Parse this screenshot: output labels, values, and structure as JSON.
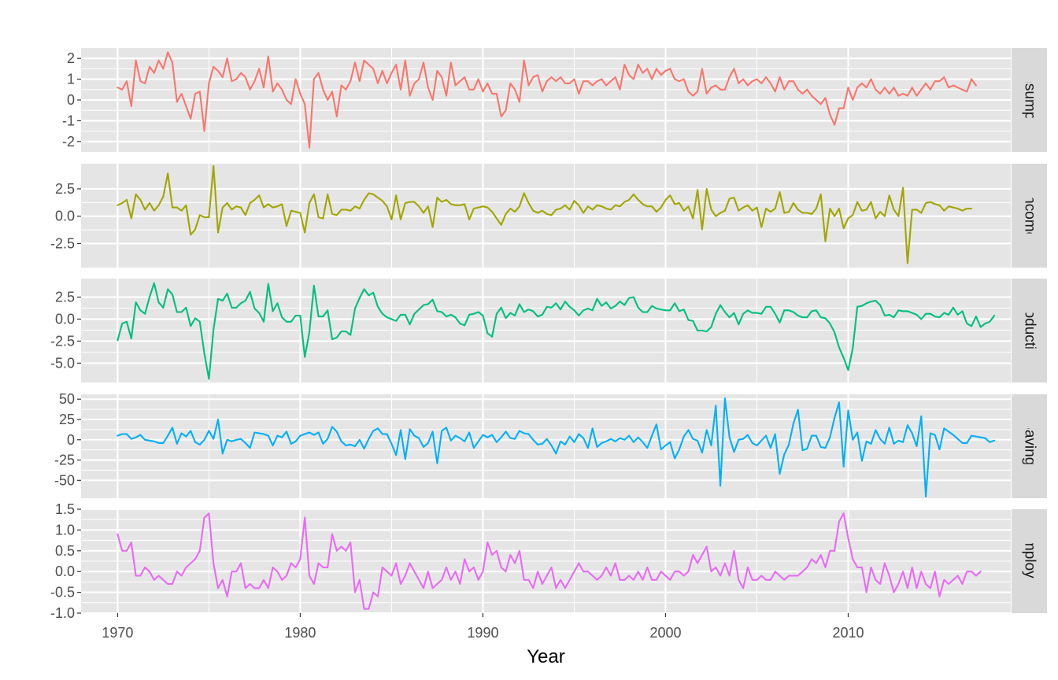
{
  "chart_data": {
    "type": "line",
    "facets": "rows, free y scales",
    "xlabel": "Year",
    "x_ticks": [
      1970,
      1980,
      1990,
      2000,
      2010
    ],
    "xlim": [
      1968,
      2018.9
    ],
    "x_start": 1970.0,
    "x_step": 0.25,
    "grid": true,
    "series": [
      {
        "name": "Consumption",
        "color": "#F8766D",
        "ylim": [
          -2.5,
          2.5
        ],
        "y_ticks": [
          2,
          1,
          0,
          -1,
          -2
        ],
        "y_tick_labels": [
          "2",
          "1",
          "0",
          "-1",
          "-2"
        ],
        "values": [
          0.6,
          0.5,
          0.9,
          -0.3,
          1.9,
          0.9,
          0.8,
          1.6,
          1.3,
          1.9,
          1.5,
          2.3,
          1.8,
          -0.1,
          0.3,
          -0.3,
          -0.9,
          0.3,
          0.4,
          -1.5,
          0.8,
          1.6,
          1.4,
          1.1,
          2.0,
          0.9,
          1.0,
          1.3,
          1.1,
          0.5,
          0.9,
          1.5,
          0.6,
          2.1,
          0.4,
          0.8,
          0.5,
          0.0,
          -0.2,
          1.0,
          0.3,
          -0.2,
          -2.3,
          1.0,
          1.3,
          0.5,
          0.0,
          0.4,
          -0.8,
          0.7,
          0.5,
          0.9,
          1.8,
          0.9,
          1.9,
          1.7,
          1.5,
          0.8,
          1.4,
          0.8,
          1.3,
          1.7,
          0.5,
          1.9,
          0.2,
          0.8,
          1.0,
          1.8,
          0.6,
          0.0,
          1.4,
          1.1,
          0.2,
          1.8,
          0.7,
          0.9,
          1.1,
          0.5,
          0.5,
          1.0,
          0.4,
          0.8,
          0.3,
          0.3,
          -0.8,
          -0.5,
          0.8,
          0.5,
          -0.1,
          1.9,
          0.7,
          1.1,
          1.2,
          0.4,
          0.9,
          1.1,
          0.9,
          1.1,
          0.8,
          0.8,
          1.0,
          0.3,
          0.9,
          0.9,
          0.7,
          0.9,
          1.0,
          0.7,
          0.9,
          1.1,
          0.5,
          1.7,
          1.2,
          1.0,
          1.7,
          1.3,
          1.5,
          1.0,
          1.5,
          1.2,
          1.4,
          1.5,
          1.0,
          0.9,
          1.0,
          0.4,
          0.2,
          0.4,
          1.5,
          0.3,
          0.6,
          0.7,
          0.5,
          0.5,
          1.1,
          1.5,
          0.8,
          1.0,
          0.7,
          0.9,
          1.0,
          0.8,
          1.1,
          0.8,
          0.4,
          1.1,
          0.5,
          0.9,
          0.9,
          0.5,
          0.3,
          0.5,
          0.2,
          0.0,
          -0.2,
          0.1,
          -0.7,
          -1.2,
          -0.4,
          -0.4,
          0.6,
          0.0,
          0.6,
          0.8,
          0.6,
          1.0,
          0.5,
          0.3,
          0.6,
          0.3,
          0.6,
          0.2,
          0.3,
          0.2,
          0.6,
          0.2,
          0.5,
          0.8,
          0.5,
          0.9,
          0.9,
          1.1,
          0.6,
          0.7,
          0.6,
          0.5,
          0.4,
          1.0,
          0.7
        ]
      },
      {
        "name": "Income",
        "color": "#A3A500",
        "ylim": [
          -4.7,
          4.8
        ],
        "y_ticks": [
          2.5,
          0.0,
          -2.5
        ],
        "y_tick_labels": [
          "2.5",
          "0.0",
          "-2.5"
        ],
        "values": [
          1.0,
          1.2,
          1.5,
          -0.2,
          2.0,
          1.5,
          0.6,
          1.2,
          0.5,
          1.0,
          1.8,
          3.9,
          0.8,
          0.8,
          0.5,
          1.0,
          -1.7,
          -1.2,
          0.1,
          -0.1,
          -0.1,
          4.6,
          -1.5,
          0.8,
          1.2,
          0.6,
          0.9,
          0.8,
          0.1,
          1.2,
          1.5,
          1.9,
          0.8,
          1.1,
          0.8,
          0.9,
          1.1,
          -0.9,
          0.5,
          0.4,
          0.3,
          -1.5,
          1.2,
          2.0,
          -0.1,
          -0.2,
          2.0,
          0.2,
          0.1,
          0.6,
          0.6,
          0.5,
          0.9,
          0.7,
          1.5,
          2.1,
          2.0,
          1.7,
          1.4,
          0.9,
          -0.3,
          1.9,
          -0.3,
          1.2,
          1.3,
          1.3,
          0.9,
          0.3,
          0.9,
          -1.0,
          1.7,
          1.3,
          1.5,
          1.1,
          1.0,
          1.0,
          1.1,
          -0.3,
          0.7,
          0.8,
          0.9,
          0.8,
          0.4,
          -0.2,
          -0.8,
          0.2,
          0.7,
          0.4,
          0.9,
          2.1,
          1.2,
          0.5,
          0.3,
          0.5,
          0.2,
          0.1,
          0.6,
          0.7,
          1.0,
          0.6,
          1.4,
          1.0,
          0.3,
          0.9,
          0.6,
          1.0,
          0.9,
          0.7,
          0.6,
          1.0,
          0.9,
          1.3,
          1.5,
          2.0,
          1.5,
          1.1,
          0.9,
          0.9,
          0.4,
          0.8,
          1.5,
          1.9,
          1.1,
          1.2,
          0.5,
          0.9,
          -0.2,
          2.4,
          -1.2,
          2.5,
          0.6,
          0.0,
          0.3,
          0.5,
          1.6,
          1.7,
          0.5,
          0.8,
          1.0,
          0.5,
          0.8,
          -1.0,
          0.7,
          0.4,
          0.7,
          2.2,
          0.3,
          0.4,
          1.2,
          0.6,
          0.3,
          0.3,
          0.2,
          0.7,
          2.0,
          -2.3,
          0.7,
          0.0,
          0.7,
          -1.1,
          -0.2,
          0.1,
          1.3,
          0.5,
          0.6,
          1.3,
          -0.2,
          0.4,
          0.0,
          1.9,
          0.6,
          0.0,
          2.6,
          -4.3,
          0.6,
          0.6,
          0.3,
          1.2,
          1.3,
          1.1,
          1.0,
          0.5,
          0.9,
          0.8,
          0.7,
          0.5,
          0.7,
          0.7
        ]
      },
      {
        "name": "Production",
        "color": "#00BF7D",
        "ylim": [
          -7.2,
          4.6
        ],
        "y_ticks": [
          2.5,
          0.0,
          -2.5,
          -5.0
        ],
        "y_tick_labels": [
          "2.5",
          "0.0",
          "-2.5",
          "-5.0"
        ],
        "values": [
          -2.4,
          -0.5,
          -0.3,
          -2.2,
          1.9,
          1.0,
          0.6,
          2.5,
          4.1,
          1.9,
          1.3,
          3.4,
          2.8,
          0.8,
          0.8,
          1.3,
          -0.8,
          0.1,
          -0.3,
          -3.9,
          -6.8,
          -1.2,
          2.3,
          2.1,
          2.9,
          1.3,
          1.3,
          1.8,
          2.1,
          3.1,
          1.2,
          0.7,
          -0.3,
          4.0,
          0.9,
          1.8,
          0.2,
          -0.3,
          -0.3,
          0.4,
          0.4,
          -4.3,
          -1.5,
          3.8,
          0.3,
          0.3,
          1.0,
          -2.3,
          -2.1,
          -1.4,
          -1.4,
          -1.8,
          1.2,
          2.4,
          3.4,
          2.7,
          3.0,
          1.4,
          0.6,
          0.2,
          0.0,
          -0.2,
          0.5,
          0.5,
          -0.6,
          0.6,
          1.1,
          1.6,
          1.7,
          2.2,
          0.9,
          0.8,
          0.3,
          0.5,
          0.2,
          -0.5,
          -0.7,
          0.5,
          0.6,
          0.8,
          0.4,
          -1.6,
          -2.0,
          0.6,
          1.3,
          0.1,
          0.7,
          0.4,
          1.7,
          0.8,
          1.1,
          0.9,
          0.3,
          0.5,
          1.4,
          1.3,
          1.8,
          1.1,
          2.0,
          1.4,
          1.0,
          0.4,
          1.0,
          1.2,
          1.0,
          2.3,
          1.5,
          1.9,
          1.2,
          1.5,
          2.0,
          1.6,
          2.4,
          2.5,
          1.3,
          0.8,
          0.8,
          1.5,
          1.2,
          1.1,
          1.0,
          1.0,
          1.8,
          0.9,
          1.1,
          -0.1,
          -0.2,
          -1.3,
          -1.3,
          -1.4,
          -0.9,
          0.6,
          1.6,
          0.8,
          0.2,
          0.7,
          -0.6,
          0.6,
          1.0,
          0.7,
          0.7,
          0.6,
          1.4,
          1.4,
          0.6,
          -0.4,
          1.0,
          1.0,
          0.8,
          0.4,
          0.2,
          0.2,
          0.9,
          1.0,
          0.2,
          0.1,
          -0.5,
          -1.5,
          -3.2,
          -4.4,
          -5.8,
          -3.3,
          1.4,
          1.5,
          1.8,
          2.0,
          2.1,
          1.6,
          0.4,
          0.5,
          0.2,
          1.0,
          0.9,
          0.9,
          0.7,
          0.5,
          0.0,
          0.6,
          0.6,
          0.3,
          0.2,
          0.7,
          0.5,
          1.3,
          0.5,
          0.9,
          -0.5,
          -0.8,
          0.3,
          -0.9,
          -0.5,
          -0.3,
          0.4
        ]
      },
      {
        "name": "Savings",
        "color": "#00B0F6",
        "ylim": [
          -72,
          56
        ],
        "y_ticks": [
          50,
          25,
          0,
          -25,
          -50
        ],
        "y_tick_labels": [
          "50",
          "25",
          "0",
          "-25",
          "-50"
        ],
        "values": [
          5,
          7,
          7,
          1,
          3,
          6,
          0,
          -1,
          -2,
          -4,
          -4,
          5,
          15,
          -5,
          8,
          4,
          11,
          -3,
          -6,
          0,
          11,
          1,
          25,
          -17,
          0,
          -2,
          0,
          1,
          -4,
          -10,
          9,
          8,
          7,
          5,
          -7,
          5,
          3,
          10,
          -5,
          -2,
          5,
          7,
          9,
          6,
          9,
          -5,
          1,
          16,
          10,
          -2,
          -7,
          -6,
          -8,
          0,
          -11,
          1,
          11,
          14,
          7,
          7,
          -5,
          -19,
          12,
          -24,
          13,
          5,
          2,
          -9,
          -4,
          10,
          -29,
          11,
          15,
          -1,
          5,
          2,
          -2,
          9,
          -10,
          -2,
          6,
          3,
          6,
          -3,
          3,
          10,
          2,
          1,
          11,
          8,
          7,
          0,
          -6,
          -5,
          1,
          -7,
          -17,
          -2,
          -6,
          4,
          -3,
          7,
          2,
          -10,
          14,
          -9,
          -4,
          -2,
          1,
          -2,
          2,
          0,
          5,
          -3,
          3,
          -3,
          -10,
          5,
          19,
          -12,
          -7,
          -3,
          -23,
          -12,
          4,
          12,
          1,
          -1,
          -16,
          12,
          -7,
          42,
          -57,
          51,
          3,
          -15,
          0,
          1,
          6,
          -4,
          -7,
          -1,
          5,
          -10,
          7,
          -42,
          -18,
          -6,
          20,
          37,
          -13,
          -11,
          5,
          5,
          -9,
          -10,
          3,
          27,
          46,
          -33,
          36,
          0,
          9,
          -26,
          -2,
          -5,
          12,
          1,
          -5,
          15,
          -5,
          -1,
          -3,
          18,
          8,
          -8,
          29,
          -70,
          8,
          6,
          -12,
          14,
          10,
          6,
          1,
          -4,
          -4,
          5,
          4,
          3,
          2,
          -3,
          -1
        ]
      },
      {
        "name": "Unemployment",
        "color": "#E76BF3",
        "ylim": [
          -1.0,
          1.5
        ],
        "y_ticks": [
          1.5,
          1.0,
          0.5,
          0.0,
          -0.5,
          -1.0
        ],
        "y_tick_labels": [
          "1.5",
          "1.0",
          "0.5",
          "0.0",
          "-0.5",
          "-1.0"
        ],
        "values": [
          0.9,
          0.5,
          0.5,
          0.7,
          -0.1,
          -0.1,
          0.1,
          0.0,
          -0.2,
          -0.1,
          -0.2,
          -0.3,
          -0.3,
          0.0,
          -0.1,
          0.1,
          0.2,
          0.3,
          0.5,
          1.3,
          1.4,
          0.2,
          -0.4,
          -0.2,
          -0.6,
          0.0,
          0.0,
          0.2,
          -0.4,
          -0.3,
          -0.4,
          -0.4,
          -0.2,
          -0.4,
          0.1,
          0.0,
          -0.2,
          -0.1,
          0.2,
          0.1,
          0.3,
          1.3,
          -0.1,
          -0.3,
          0.2,
          0.1,
          0.1,
          0.9,
          0.5,
          0.6,
          0.5,
          0.7,
          -0.5,
          -0.2,
          -0.9,
          -0.9,
          -0.5,
          -0.6,
          0.1,
          0.0,
          -0.1,
          0.2,
          -0.3,
          -0.1,
          0.2,
          0.0,
          -0.2,
          -0.4,
          0.0,
          -0.4,
          -0.3,
          -0.2,
          0.1,
          -0.2,
          0.0,
          -0.3,
          0.3,
          0.0,
          0.1,
          -0.2,
          0.0,
          0.7,
          0.4,
          0.5,
          0.1,
          0.0,
          0.4,
          0.2,
          0.5,
          -0.2,
          -0.2,
          -0.4,
          0.0,
          -0.3,
          -0.1,
          0.1,
          -0.4,
          -0.2,
          -0.4,
          -0.2,
          0.0,
          0.2,
          0.0,
          0.0,
          -0.1,
          -0.2,
          -0.1,
          0.1,
          -0.1,
          0.2,
          -0.2,
          -0.2,
          -0.1,
          -0.2,
          0.0,
          -0.2,
          0.1,
          -0.2,
          -0.2,
          0.0,
          -0.1,
          -0.2,
          0.0,
          0.0,
          -0.1,
          0.0,
          0.4,
          0.2,
          0.4,
          0.6,
          0.0,
          0.1,
          -0.1,
          0.2,
          -0.1,
          0.5,
          -0.2,
          -0.4,
          0.1,
          -0.2,
          -0.2,
          -0.1,
          -0.2,
          -0.2,
          0.0,
          -0.1,
          -0.2,
          -0.1,
          -0.1,
          -0.1,
          0.0,
          0.1,
          0.3,
          0.2,
          0.4,
          0.1,
          0.5,
          0.5,
          1.2,
          1.4,
          0.8,
          0.3,
          0.1,
          0.1,
          -0.5,
          0.1,
          -0.2,
          -0.3,
          0.2,
          -0.1,
          -0.5,
          -0.3,
          0.0,
          -0.4,
          0.1,
          -0.4,
          0.0,
          -0.3,
          -0.4,
          0.0,
          -0.6,
          -0.2,
          -0.3,
          -0.2,
          -0.1,
          -0.3,
          0.0,
          0.0,
          -0.1,
          0.0
        ]
      }
    ]
  }
}
